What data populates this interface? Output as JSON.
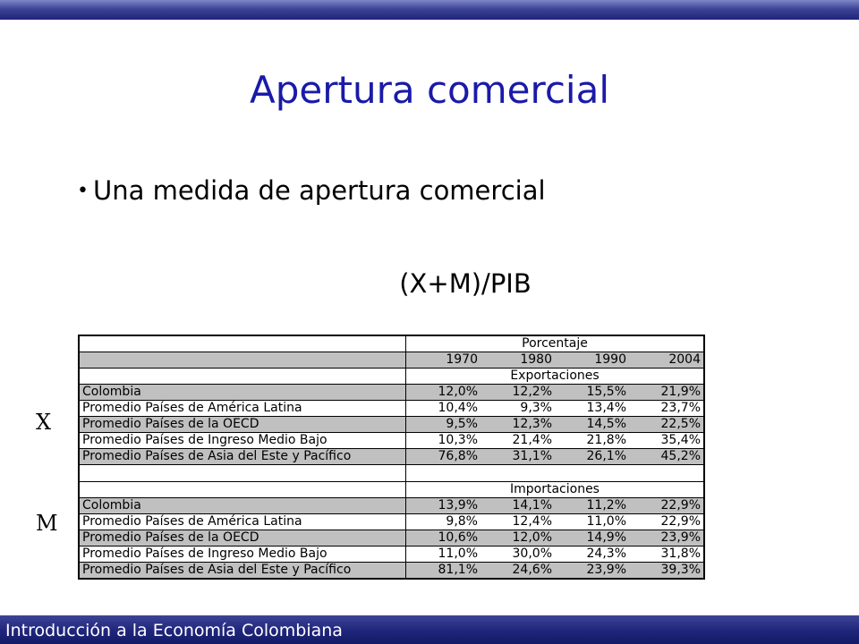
{
  "slide": {
    "title": "Apertura comercial",
    "bullet": "Una medida de apertura comercial",
    "formula": "(X+M)/PIB",
    "label_x": "X",
    "label_m": "M",
    "footer": "Introducción a la Economía Colombiana"
  },
  "table": {
    "header_group": "Porcentaje",
    "years": [
      "1970",
      "1980",
      "1990",
      "2004"
    ],
    "sections": [
      {
        "title": "Exportaciones",
        "rows": [
          {
            "label": "Colombia",
            "values": [
              "12,0%",
              "12,2%",
              "15,5%",
              "21,9%"
            ]
          },
          {
            "label": "Promedio Países de América Latina",
            "values": [
              "10,4%",
              "9,3%",
              "13,4%",
              "23,7%"
            ]
          },
          {
            "label": "Promedio Países de la OECD",
            "values": [
              "9,5%",
              "12,3%",
              "14,5%",
              "22,5%"
            ]
          },
          {
            "label": "Promedio Países de Ingreso Medio Bajo",
            "values": [
              "10,3%",
              "21,4%",
              "21,8%",
              "35,4%"
            ]
          },
          {
            "label": "Promedio Países de Asia del Este y Pacífico",
            "values": [
              "76,8%",
              "31,1%",
              "26,1%",
              "45,2%"
            ]
          }
        ]
      },
      {
        "title": "Importaciones",
        "rows": [
          {
            "label": "Colombia",
            "values": [
              "13,9%",
              "14,1%",
              "11,2%",
              "22,9%"
            ]
          },
          {
            "label": "Promedio Países de América Latina",
            "values": [
              "9,8%",
              "12,4%",
              "11,0%",
              "22,9%"
            ]
          },
          {
            "label": "Promedio Países de la OECD",
            "values": [
              "10,6%",
              "12,0%",
              "14,9%",
              "23,9%"
            ]
          },
          {
            "label": "Promedio Países de Ingreso Medio Bajo",
            "values": [
              "11,0%",
              "30,0%",
              "24,3%",
              "31,8%"
            ]
          },
          {
            "label": "Promedio Países de Asia del Este y Pacífico",
            "values": [
              "81,1%",
              "24,6%",
              "23,9%",
              "39,3%"
            ]
          }
        ]
      }
    ]
  }
}
